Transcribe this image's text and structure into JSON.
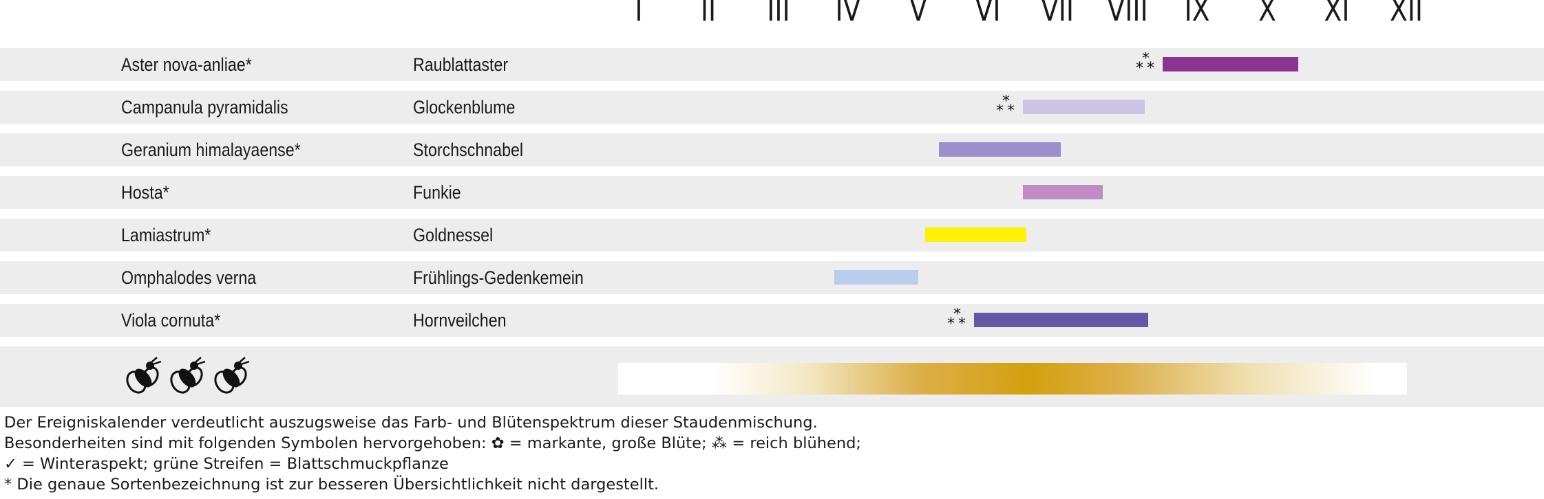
{
  "months": [
    "I",
    "II",
    "III",
    "IV",
    "V",
    "VI",
    "VII",
    "VIII",
    "IX",
    "X",
    "XI",
    "XII"
  ],
  "chart_data": {
    "type": "bar",
    "categories": [
      "Aster nova-anliae*",
      "Campanula pyramidalis",
      "Geranium himalayaense*",
      "Hosta*",
      "Lamiastrum*",
      "Omphalodes verna",
      "Viola cornuta*"
    ],
    "rows": [
      {
        "latin": "Aster nova-anliae*",
        "common": "Raublattaster",
        "start": 8.5,
        "end": 10.45,
        "color": "#8b3393",
        "abundant": true
      },
      {
        "latin": "Campanula pyramidalis",
        "common": "Glockenblume",
        "start": 6.5,
        "end": 8.25,
        "color": "#cbc4e4",
        "abundant": true
      },
      {
        "latin": "Geranium himalayaense*",
        "common": "Storchschnabel",
        "start": 5.3,
        "end": 7.05,
        "color": "#9b90cb",
        "abundant": false
      },
      {
        "latin": "Hosta*",
        "common": "Funkie",
        "start": 6.5,
        "end": 7.65,
        "color": "#c18bc5",
        "abundant": false
      },
      {
        "latin": "Lamiastrum*",
        "common": "Goldnessel",
        "start": 5.1,
        "end": 6.55,
        "color": "#fff200",
        "abundant": false
      },
      {
        "latin": "Omphalodes verna",
        "common": "Frühlings-Gedenkemein",
        "start": 3.8,
        "end": 5.0,
        "color": "#b9cdef",
        "abundant": false
      },
      {
        "latin": "Viola cornuta*",
        "common": "Hornveilchen",
        "start": 5.8,
        "end": 8.3,
        "color": "#6657a6",
        "abundant": true
      }
    ],
    "bee_gradient": {
      "color": "#d3a00f",
      "range": [
        2.95,
        12.0
      ],
      "peak": 6.9
    },
    "xlim": [
      1,
      12
    ]
  },
  "legend": {
    "line1": "Der Ereigniskalender verdeutlicht auszugsweise das Farb- und Blütenspektrum dieser Staudenmischung.",
    "line2": "Besonderheiten sind mit folgenden Symbolen hervorgehoben: ✿ = markante, große Blüte; ⁂ = reich blühend;",
    "line3": "✓ = Winteraspekt; grüne Streifen = Blattschmuckpflanze",
    "line4": "* Die genaue Sortenbezeichnung ist zur besseren Übersichtlichkeit nicht dargestellt."
  },
  "icons": {
    "abundant": "three-asterisks-icon",
    "bee": "bee-icon"
  }
}
